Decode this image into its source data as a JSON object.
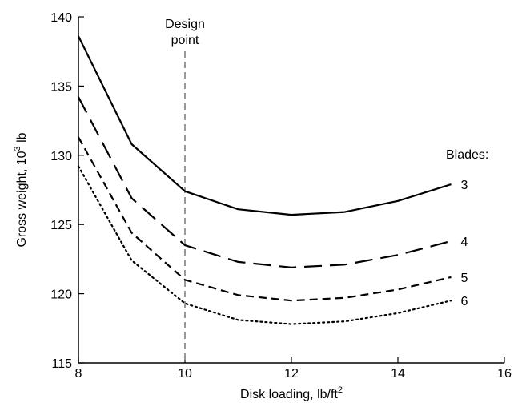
{
  "chart_data": {
    "type": "line",
    "title": "",
    "xlabel": "Disk loading, lb/ft",
    "xlabel_sup": "2",
    "ylabel": "Gross weight, 10",
    "ylabel_sup": "3",
    "ylabel_unit": " lb",
    "xlim": [
      8,
      16
    ],
    "ylim": [
      115,
      140
    ],
    "xticks": [
      8,
      10,
      12,
      14,
      16
    ],
    "yticks": [
      115,
      120,
      125,
      130,
      135,
      140
    ],
    "grid": false,
    "design_point": {
      "x": 10,
      "label_line1": "Design",
      "label_line2": "point"
    },
    "legend_title": "Blades:",
    "x": [
      8,
      9,
      10,
      11,
      12,
      13,
      14,
      15
    ],
    "series": [
      {
        "name": "3",
        "style": "solid",
        "values": [
          138.6,
          130.8,
          127.4,
          126.1,
          125.7,
          125.9,
          126.7,
          127.9
        ]
      },
      {
        "name": "4",
        "style": "long-dash",
        "values": [
          134.2,
          126.9,
          123.5,
          122.3,
          121.9,
          122.1,
          122.8,
          123.8
        ]
      },
      {
        "name": "5",
        "style": "dash",
        "values": [
          131.3,
          124.4,
          121.0,
          119.9,
          119.5,
          119.7,
          120.3,
          121.2
        ]
      },
      {
        "name": "6",
        "style": "dot",
        "values": [
          129.2,
          122.4,
          119.3,
          118.1,
          117.8,
          118.0,
          118.6,
          119.5
        ]
      }
    ]
  }
}
